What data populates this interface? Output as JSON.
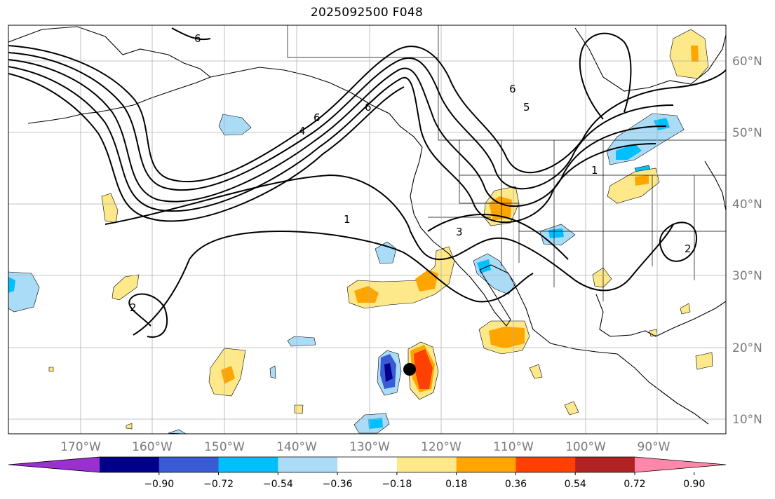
{
  "title": "2025092500 F048",
  "colors": {
    "ocean": "#ffffff",
    "coast": "#000000",
    "grid": "#b0b0b0",
    "contour": "#000000"
  },
  "lon_labels": [
    "170°W",
    "160°W",
    "150°W",
    "140°W",
    "130°W",
    "120°W",
    "110°W",
    "100°W",
    "90°W"
  ],
  "lat_labels": [
    "60°N",
    "50°N",
    "40°N",
    "30°N",
    "20°N",
    "10°N"
  ],
  "colorbar": {
    "ticks": [
      "−0.90",
      "−0.72",
      "−0.54",
      "−0.36",
      "−0.18",
      "0.18",
      "0.36",
      "0.54",
      "0.72",
      "0.90"
    ],
    "colors": [
      "#9b30d0",
      "#00008b",
      "#3a5bd6",
      "#00bfff",
      "#aadcf8",
      "#ffffff",
      "#fde98a",
      "#ffa500",
      "#ff4000",
      "#b22222",
      "#ff88aa"
    ]
  },
  "contour_labels": [
    "6",
    "6",
    "4",
    "6",
    "5",
    "6",
    "1",
    "3",
    "1",
    "2",
    "2"
  ],
  "marker": "storm-center"
}
